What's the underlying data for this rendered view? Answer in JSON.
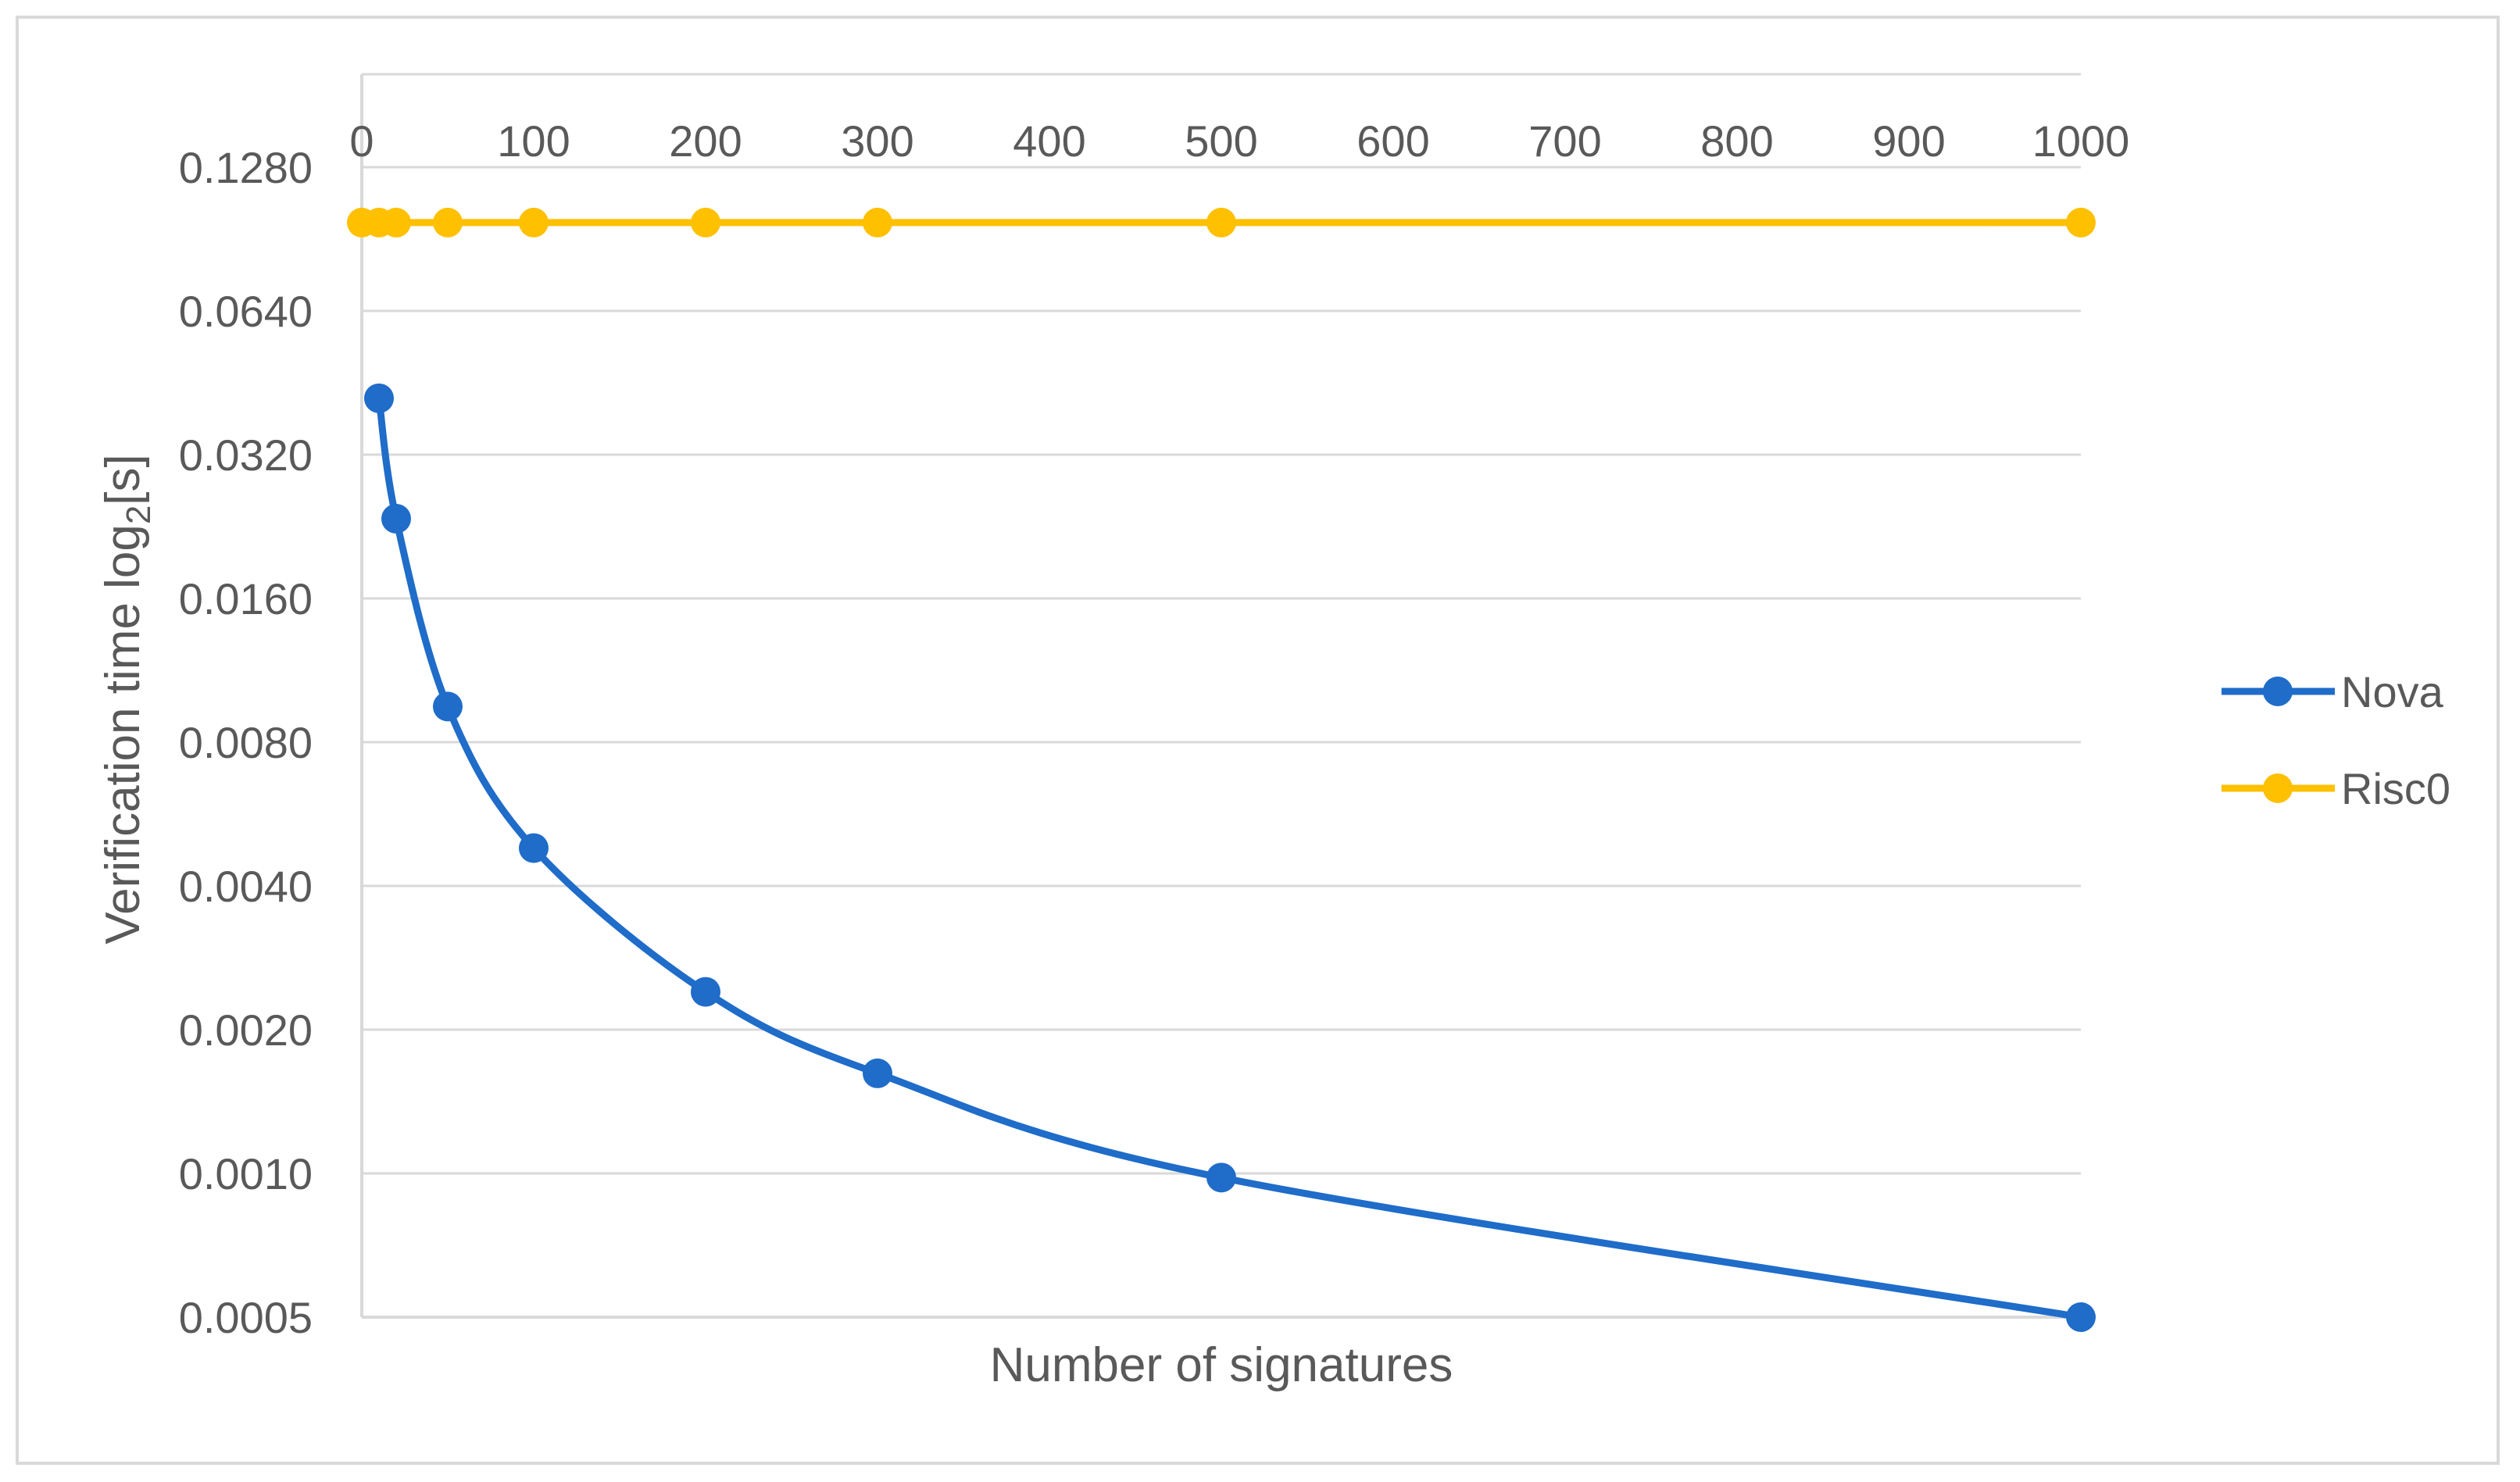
{
  "chart_data": {
    "type": "line",
    "title": "",
    "xlabel": "Number of signatures",
    "ylabel": {
      "prefix": "Verification time  log",
      "subscript": "2",
      "suffix": "[s]"
    },
    "y_scale": "log2",
    "xlim": [
      0,
      1000
    ],
    "ylim": [
      0.0005,
      0.128
    ],
    "x_ticks": [
      0,
      100,
      200,
      300,
      400,
      500,
      600,
      700,
      800,
      900,
      1000
    ],
    "x_tick_labels": [
      "0",
      "100",
      "200",
      "300",
      "400",
      "500",
      "600",
      "700",
      "800",
      "900",
      "1000"
    ],
    "y_ticks": [
      0.0005,
      0.001,
      0.002,
      0.004,
      0.008,
      0.016,
      0.032,
      0.064,
      0.128
    ],
    "y_tick_labels": [
      "0.0005",
      "0.0010",
      "0.0020",
      "0.0040",
      "0.0080",
      "0.0160",
      "0.0320",
      "0.0640",
      "0.1280"
    ],
    "x_axis_position": "top",
    "grid": true,
    "legend_position": "right",
    "series": [
      {
        "name": "Nova",
        "color": "#1f6cc9",
        "smooth": true,
        "x": [
          10,
          20,
          50,
          100,
          200,
          300,
          500,
          1000
        ],
        "y": [
          0.042,
          0.0235,
          0.0095,
          0.0048,
          0.0024,
          0.00162,
          0.00098,
          0.0005
        ]
      },
      {
        "name": "Risc0",
        "color": "#ffc000",
        "smooth": false,
        "x": [
          0,
          10,
          20,
          50,
          100,
          200,
          300,
          500,
          1000
        ],
        "y": [
          0.098,
          0.098,
          0.098,
          0.098,
          0.098,
          0.098,
          0.098,
          0.098,
          0.098
        ]
      }
    ]
  }
}
